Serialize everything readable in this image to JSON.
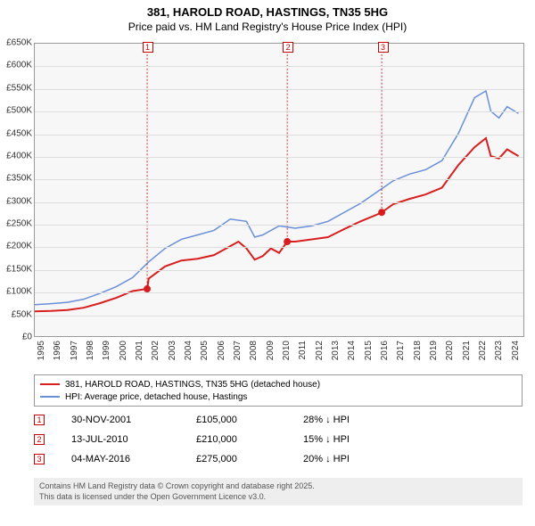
{
  "title": "381, HAROLD ROAD, HASTINGS, TN35 5HG",
  "subtitle": "Price paid vs. HM Land Registry's House Price Index (HPI)",
  "chart": {
    "type": "line",
    "background_color": "#f7f7f7",
    "grid_color": "#dddddd",
    "border_color": "#999999",
    "ylim": [
      0,
      650000
    ],
    "ytick_step": 50000,
    "ytick_labels": [
      "£0",
      "£50K",
      "£100K",
      "£150K",
      "£200K",
      "£250K",
      "£300K",
      "£350K",
      "£400K",
      "£450K",
      "£500K",
      "£550K",
      "£600K",
      "£650K"
    ],
    "xlim": [
      1995,
      2025
    ],
    "xtick_labels": [
      "1995",
      "1996",
      "1997",
      "1998",
      "1999",
      "2000",
      "2001",
      "2002",
      "2003",
      "2004",
      "2005",
      "2006",
      "2007",
      "2008",
      "2009",
      "2010",
      "2011",
      "2012",
      "2013",
      "2014",
      "2015",
      "2016",
      "2017",
      "2018",
      "2019",
      "2020",
      "2021",
      "2022",
      "2023",
      "2024"
    ],
    "series": [
      {
        "name": "hpi",
        "color": "#6a8fd8",
        "line_width": 1.5,
        "points": [
          [
            1995,
            70000
          ],
          [
            1996,
            72000
          ],
          [
            1997,
            75000
          ],
          [
            1998,
            82000
          ],
          [
            1999,
            95000
          ],
          [
            2000,
            110000
          ],
          [
            2001,
            130000
          ],
          [
            2002,
            165000
          ],
          [
            2003,
            195000
          ],
          [
            2004,
            215000
          ],
          [
            2005,
            225000
          ],
          [
            2006,
            235000
          ],
          [
            2007,
            260000
          ],
          [
            2008,
            255000
          ],
          [
            2008.5,
            220000
          ],
          [
            2009,
            225000
          ],
          [
            2010,
            245000
          ],
          [
            2011,
            240000
          ],
          [
            2012,
            245000
          ],
          [
            2013,
            255000
          ],
          [
            2014,
            275000
          ],
          [
            2015,
            295000
          ],
          [
            2016,
            320000
          ],
          [
            2017,
            345000
          ],
          [
            2018,
            360000
          ],
          [
            2019,
            370000
          ],
          [
            2020,
            390000
          ],
          [
            2021,
            450000
          ],
          [
            2022,
            530000
          ],
          [
            2022.7,
            545000
          ],
          [
            2023,
            500000
          ],
          [
            2023.5,
            485000
          ],
          [
            2024,
            510000
          ],
          [
            2024.7,
            495000
          ]
        ]
      },
      {
        "name": "price_paid",
        "color": "#d81e1e",
        "line_width": 2,
        "points": [
          [
            1995,
            55000
          ],
          [
            1996,
            56000
          ],
          [
            1997,
            58000
          ],
          [
            1998,
            63000
          ],
          [
            1999,
            73000
          ],
          [
            2000,
            85000
          ],
          [
            2001,
            100000
          ],
          [
            2001.9,
            105000
          ],
          [
            2002,
            128000
          ],
          [
            2003,
            155000
          ],
          [
            2004,
            168000
          ],
          [
            2005,
            172000
          ],
          [
            2006,
            180000
          ],
          [
            2007,
            200000
          ],
          [
            2007.5,
            210000
          ],
          [
            2008,
            195000
          ],
          [
            2008.5,
            170000
          ],
          [
            2009,
            178000
          ],
          [
            2009.5,
            195000
          ],
          [
            2010,
            185000
          ],
          [
            2010.5,
            210000
          ],
          [
            2011,
            210000
          ],
          [
            2012,
            215000
          ],
          [
            2013,
            220000
          ],
          [
            2014,
            238000
          ],
          [
            2015,
            255000
          ],
          [
            2016,
            270000
          ],
          [
            2016.3,
            275000
          ],
          [
            2017,
            293000
          ],
          [
            2018,
            305000
          ],
          [
            2019,
            315000
          ],
          [
            2020,
            330000
          ],
          [
            2021,
            380000
          ],
          [
            2022,
            420000
          ],
          [
            2022.7,
            440000
          ],
          [
            2023,
            400000
          ],
          [
            2023.5,
            395000
          ],
          [
            2024,
            415000
          ],
          [
            2024.7,
            400000
          ]
        ]
      }
    ],
    "price_markers": [
      {
        "label": "1",
        "x": 2001.9,
        "y": 105000
      },
      {
        "label": "2",
        "x": 2010.5,
        "y": 210000
      },
      {
        "label": "3",
        "x": 2016.3,
        "y": 275000
      }
    ]
  },
  "legend": [
    {
      "color": "#d81e1e",
      "label": "381, HAROLD ROAD, HASTINGS, TN35 5HG (detached house)"
    },
    {
      "color": "#6a8fd8",
      "label": "HPI: Average price, detached house, Hastings"
    }
  ],
  "transactions": [
    {
      "marker": "1",
      "date": "30-NOV-2001",
      "price": "£105,000",
      "diff": "28% ↓ HPI"
    },
    {
      "marker": "2",
      "date": "13-JUL-2010",
      "price": "£210,000",
      "diff": "15% ↓ HPI"
    },
    {
      "marker": "3",
      "date": "04-MAY-2016",
      "price": "£275,000",
      "diff": "20% ↓ HPI"
    }
  ],
  "footer_line1": "Contains HM Land Registry data © Crown copyright and database right 2025.",
  "footer_line2": "This data is licensed under the Open Government Licence v3.0."
}
